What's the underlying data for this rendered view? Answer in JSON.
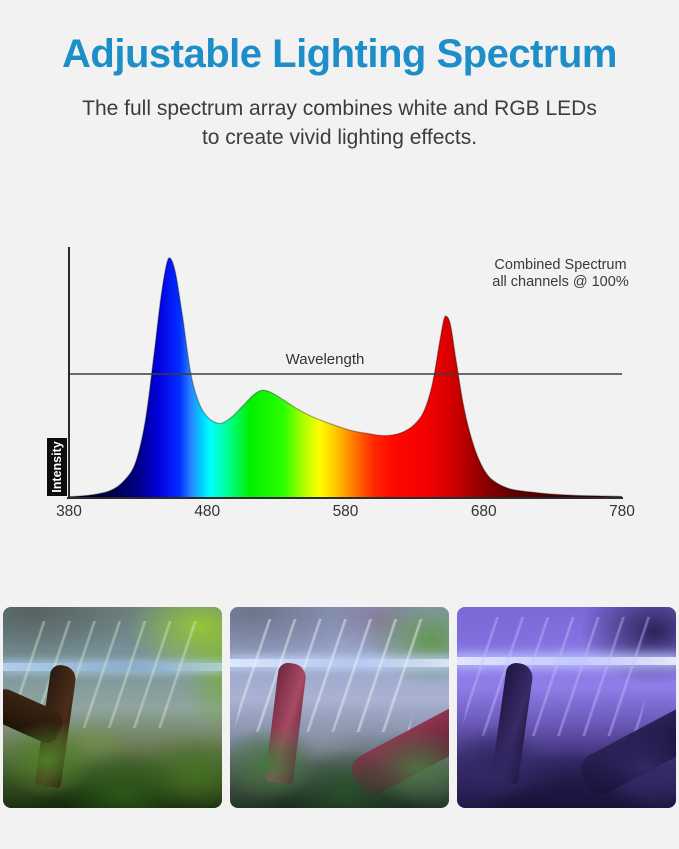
{
  "page": {
    "background_color": "#f2f2f2",
    "accent_color": "#1e8ec9",
    "text_color": "#3c3c3c"
  },
  "header": {
    "title": "Adjustable Lighting Spectrum",
    "subtitle_line1": "The full spectrum array combines white and RGB LEDs",
    "subtitle_line2": "to create vivid lighting effects."
  },
  "chart_data": {
    "type": "area",
    "title": "",
    "xlabel": "Wavelength",
    "ylabel": "Intensity",
    "x_unit": "nm",
    "xlim": [
      380,
      780
    ],
    "ylim": [
      0,
      1
    ],
    "x_ticks": [
      380,
      480,
      580,
      680,
      780
    ],
    "grid": false,
    "legend_position": "top-right",
    "annotation": {
      "line1": "Combined Spectrum",
      "line2": "all channels @ 100%"
    },
    "reference_line": {
      "label": "Wavelength",
      "level": 0.496
    },
    "axis_color": "#2b2b2b",
    "tick_text_color": "#333333",
    "peaks": [
      {
        "channel": "blue",
        "wavelength": 452,
        "intensity": 0.96
      },
      {
        "channel": "green",
        "wavelength": 519,
        "intensity": 0.43
      },
      {
        "channel": "red",
        "wavelength": 652,
        "intensity": 0.73
      }
    ],
    "curve": [
      [
        380,
        0.005
      ],
      [
        396,
        0.012
      ],
      [
        410,
        0.03
      ],
      [
        420,
        0.07
      ],
      [
        428,
        0.14
      ],
      [
        435,
        0.3
      ],
      [
        441,
        0.55
      ],
      [
        446,
        0.78
      ],
      [
        450,
        0.92
      ],
      [
        453,
        0.96
      ],
      [
        457,
        0.9
      ],
      [
        462,
        0.73
      ],
      [
        468,
        0.5
      ],
      [
        474,
        0.38
      ],
      [
        480,
        0.325
      ],
      [
        486,
        0.302
      ],
      [
        491,
        0.3
      ],
      [
        498,
        0.325
      ],
      [
        506,
        0.37
      ],
      [
        513,
        0.41
      ],
      [
        519,
        0.43
      ],
      [
        525,
        0.425
      ],
      [
        533,
        0.4
      ],
      [
        544,
        0.36
      ],
      [
        556,
        0.325
      ],
      [
        570,
        0.295
      ],
      [
        584,
        0.27
      ],
      [
        596,
        0.258
      ],
      [
        606,
        0.25
      ],
      [
        614,
        0.252
      ],
      [
        622,
        0.265
      ],
      [
        630,
        0.295
      ],
      [
        637,
        0.35
      ],
      [
        643,
        0.46
      ],
      [
        648,
        0.62
      ],
      [
        651,
        0.71
      ],
      [
        653,
        0.727
      ],
      [
        656,
        0.69
      ],
      [
        660,
        0.55
      ],
      [
        665,
        0.38
      ],
      [
        670,
        0.26
      ],
      [
        676,
        0.16
      ],
      [
        683,
        0.09
      ],
      [
        691,
        0.055
      ],
      [
        700,
        0.035
      ],
      [
        712,
        0.025
      ],
      [
        728,
        0.016
      ],
      [
        748,
        0.01
      ],
      [
        764,
        0.008
      ],
      [
        780,
        0.006
      ]
    ],
    "gradient_stops": [
      [
        380,
        "#000020"
      ],
      [
        412,
        "#00004a"
      ],
      [
        432,
        "#000090"
      ],
      [
        444,
        "#0000d8"
      ],
      [
        452,
        "#0514f2"
      ],
      [
        460,
        "#0030ff"
      ],
      [
        468,
        "#2a80ff"
      ],
      [
        476,
        "#00d0ff"
      ],
      [
        482,
        "#00ffff"
      ],
      [
        494,
        "#00ff9a"
      ],
      [
        511,
        "#00f000"
      ],
      [
        535,
        "#2aff00"
      ],
      [
        551,
        "#b8ff00"
      ],
      [
        561,
        "#ffff00"
      ],
      [
        572,
        "#ffcc00"
      ],
      [
        581,
        "#ff9800"
      ],
      [
        591,
        "#ff5a00"
      ],
      [
        601,
        "#ff2600"
      ],
      [
        613,
        "#ff0a00"
      ],
      [
        638,
        "#f40000"
      ],
      [
        655,
        "#d90000"
      ],
      [
        669,
        "#ae0000"
      ],
      [
        682,
        "#860000"
      ],
      [
        702,
        "#5e0000"
      ],
      [
        734,
        "#430000"
      ],
      [
        780,
        "#2e0000"
      ]
    ]
  },
  "photos": [
    {
      "name": "full-spectrum-white",
      "description": "Planted aquarium under warm full-spectrum white light with green plants and brown driftwood"
    },
    {
      "name": "cool-white-rgb-mix",
      "description": "Planted aquarium under cool white and magenta RGB mixed lighting"
    },
    {
      "name": "blue-moonlight",
      "description": "Planted aquarium under deep blue-violet moonlight-style lighting"
    }
  ]
}
